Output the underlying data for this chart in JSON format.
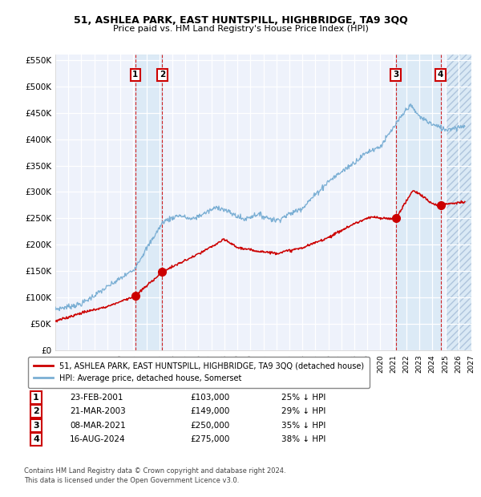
{
  "title1": "51, ASHLEA PARK, EAST HUNTSPILL, HIGHBRIDGE, TA9 3QQ",
  "title2": "Price paid vs. HM Land Registry's House Price Index (HPI)",
  "plot_bg": "#eef2fb",
  "red_line_color": "#cc0000",
  "blue_line_color": "#7bafd4",
  "grid_color": "#ffffff",
  "sales": [
    {
      "num": 1,
      "price": 103000,
      "x": 2001.15
    },
    {
      "num": 2,
      "price": 149000,
      "x": 2003.23
    },
    {
      "num": 3,
      "price": 250000,
      "x": 2021.18
    },
    {
      "num": 4,
      "price": 275000,
      "x": 2024.63
    }
  ],
  "xlim": [
    1995.0,
    2027.0
  ],
  "ylim": [
    0,
    560000
  ],
  "yticks": [
    0,
    50000,
    100000,
    150000,
    200000,
    250000,
    300000,
    350000,
    400000,
    450000,
    500000,
    550000
  ],
  "ytick_labels": [
    "£0",
    "£50K",
    "£100K",
    "£150K",
    "£200K",
    "£250K",
    "£300K",
    "£350K",
    "£400K",
    "£450K",
    "£500K",
    "£550K"
  ],
  "xticks": [
    1995,
    1996,
    1997,
    1998,
    1999,
    2000,
    2001,
    2002,
    2003,
    2004,
    2005,
    2006,
    2007,
    2008,
    2009,
    2010,
    2011,
    2012,
    2013,
    2014,
    2015,
    2016,
    2017,
    2018,
    2019,
    2020,
    2021,
    2022,
    2023,
    2024,
    2025,
    2026,
    2027
  ],
  "legend_label_red": "51, ASHLEA PARK, EAST HUNTSPILL, HIGHBRIDGE, TA9 3QQ (detached house)",
  "legend_label_blue": "HPI: Average price, detached house, Somerset",
  "footer1": "Contains HM Land Registry data © Crown copyright and database right 2024.",
  "footer2": "This data is licensed under the Open Government Licence v3.0.",
  "table": [
    [
      "1",
      "23-FEB-2001",
      "£103,000",
      "25% ↓ HPI"
    ],
    [
      "2",
      "21-MAR-2003",
      "£149,000",
      "29% ↓ HPI"
    ],
    [
      "3",
      "08-MAR-2021",
      "£250,000",
      "35% ↓ HPI"
    ],
    [
      "4",
      "16-AUG-2024",
      "£275,000",
      "38% ↓ HPI"
    ]
  ]
}
